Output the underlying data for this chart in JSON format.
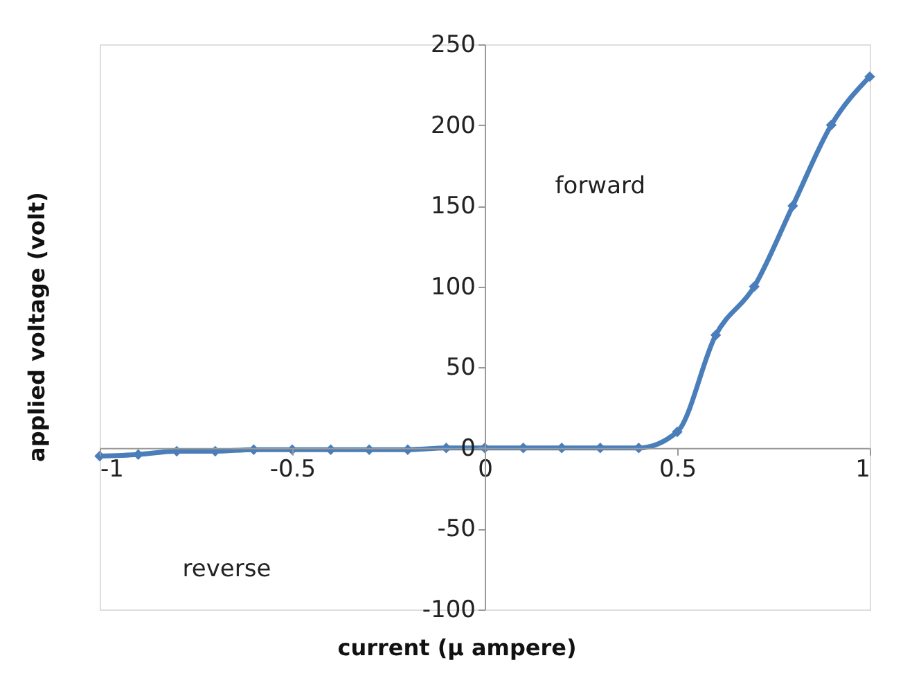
{
  "chart_data": {
    "type": "line",
    "xlabel": "current (µ ampere)",
    "ylabel": "applied voltage (volt)",
    "x": [
      -1,
      -0.9,
      -0.8,
      -0.7,
      -0.6,
      -0.5,
      -0.4,
      -0.3,
      -0.2,
      -0.1,
      0,
      0.1,
      0.2,
      0.3,
      0.4,
      0.5,
      0.6,
      0.7,
      0.8,
      0.9,
      1
    ],
    "series": [
      {
        "color": "#4a7ebb",
        "values": [
          -5,
          -4,
          -2,
          -2,
          -1,
          -1,
          -1,
          -1,
          -1,
          0,
          0,
          0,
          0,
          0,
          0,
          10,
          70,
          100,
          150,
          200,
          230
        ]
      }
    ],
    "xlim": [
      -1,
      1
    ],
    "xticks": [
      -1,
      -0.5,
      0,
      0.5,
      1
    ],
    "ylim": [
      -100,
      250
    ],
    "yticks": [
      -100,
      -50,
      0,
      50,
      100,
      150,
      200,
      250
    ],
    "marker": "diamond",
    "line_style": "solid",
    "grid": false,
    "annotations": [
      "forward",
      "reverse"
    ]
  }
}
